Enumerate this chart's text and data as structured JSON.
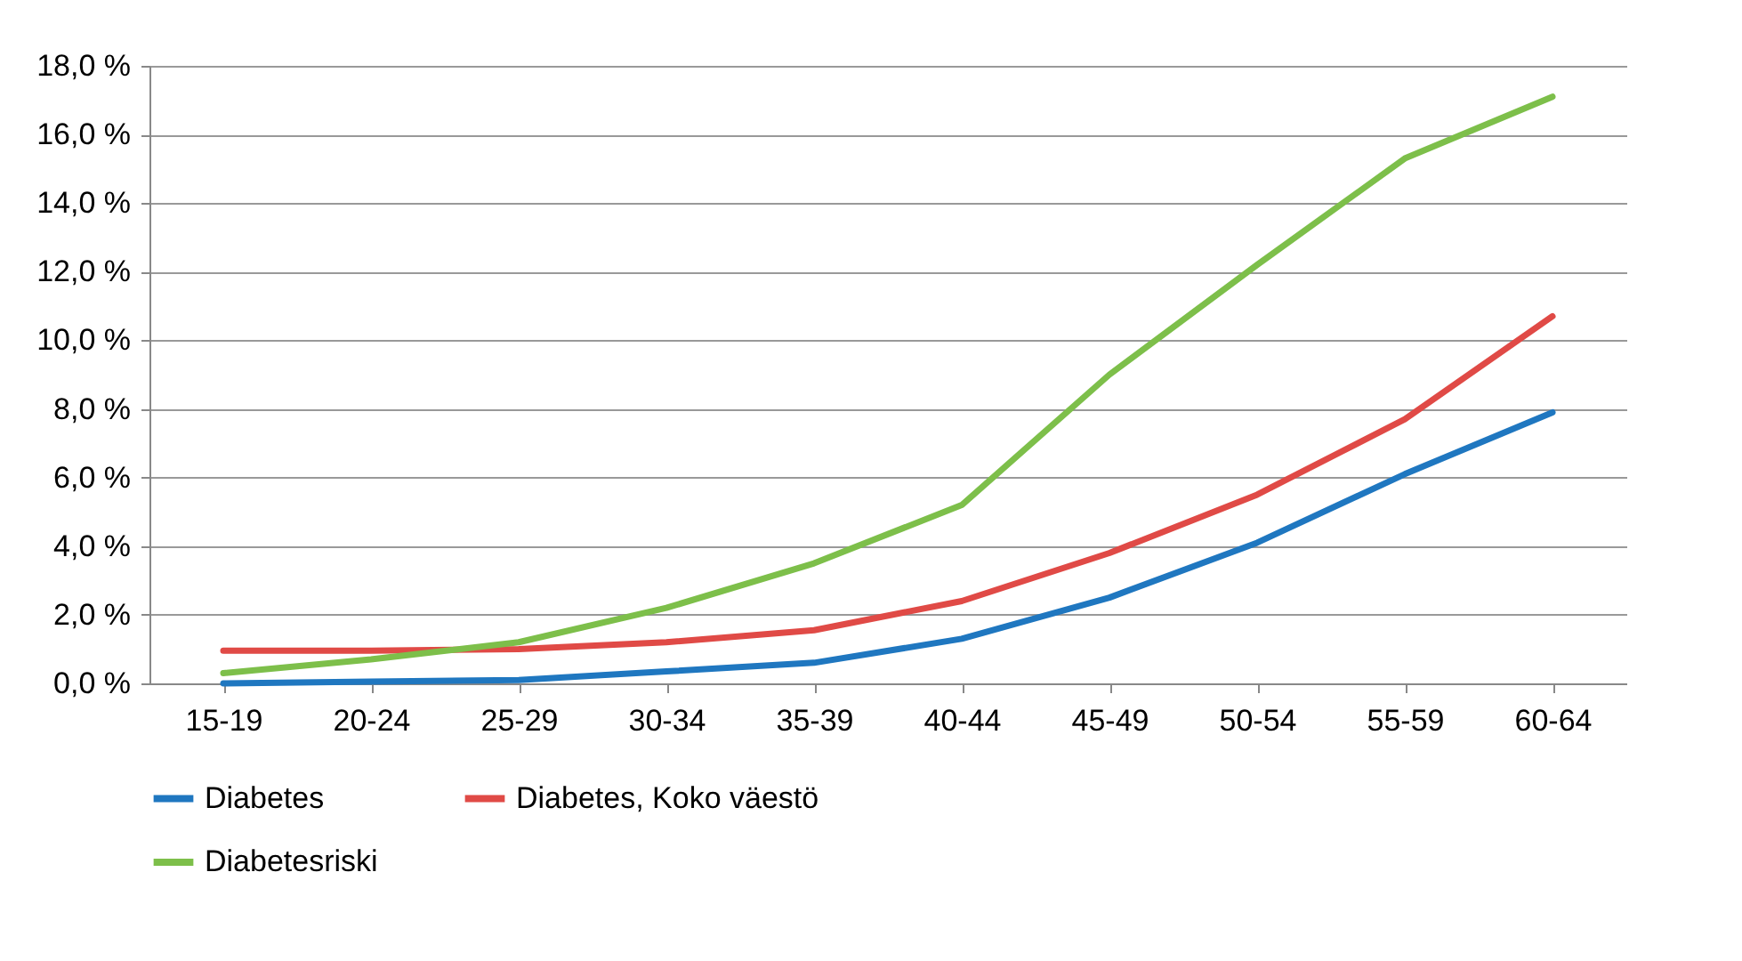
{
  "chart_data": {
    "type": "line",
    "categories": [
      "15-19",
      "20-24",
      "25-29",
      "30-34",
      "35-39",
      "40-44",
      "45-49",
      "50-54",
      "55-59",
      "60-64"
    ],
    "series": [
      {
        "name": "Diabetes",
        "color": "#1f77c0",
        "values": [
          0.0,
          0.05,
          0.1,
          0.35,
          0.6,
          1.3,
          2.5,
          4.1,
          6.1,
          7.9
        ]
      },
      {
        "name": "Diabetes, Koko väestö",
        "color": "#e04a46",
        "values": [
          0.95,
          0.95,
          1.0,
          1.2,
          1.55,
          2.4,
          3.8,
          5.5,
          7.7,
          10.7
        ]
      },
      {
        "name": "Diabetesriski",
        "color": "#7dbf4a",
        "values": [
          0.3,
          0.7,
          1.2,
          2.2,
          3.5,
          5.2,
          9.0,
          12.2,
          15.3,
          17.1
        ]
      }
    ],
    "ylim": [
      0,
      18
    ],
    "yticks": [
      {
        "value": 0,
        "label": "0,0 %"
      },
      {
        "value": 2,
        "label": "2,0 %"
      },
      {
        "value": 4,
        "label": "4,0 %"
      },
      {
        "value": 6,
        "label": "6,0 %"
      },
      {
        "value": 8,
        "label": "8,0 %"
      },
      {
        "value": 10,
        "label": "10,0 %"
      },
      {
        "value": 12,
        "label": "12,0 %"
      },
      {
        "value": 14,
        "label": "14,0 %"
      },
      {
        "value": 16,
        "label": "16,0 %"
      },
      {
        "value": 18,
        "label": "18,0 %"
      }
    ],
    "grid": "y",
    "legend": "bottom",
    "marker": "none",
    "line_style": "solid"
  }
}
